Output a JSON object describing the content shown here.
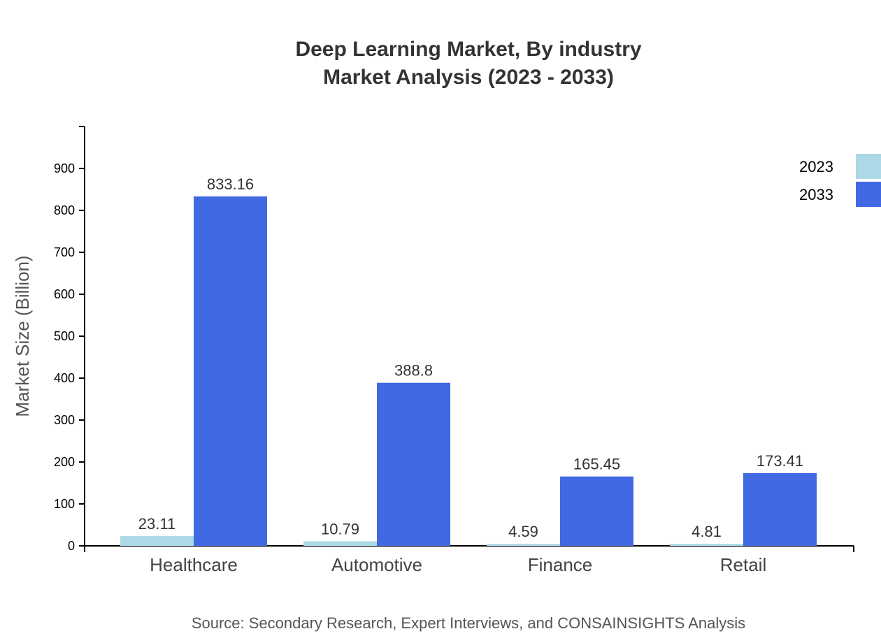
{
  "chart_data": {
    "type": "bar",
    "title": "Deep Learning Market, By industry",
    "subtitle": "Market Analysis (2023 - 2033)",
    "xlabel": "",
    "ylabel": "Market Size (Billion)",
    "ylim": [
      0,
      1000
    ],
    "yticks": [
      0,
      100,
      200,
      300,
      400,
      500,
      600,
      700,
      800,
      900
    ],
    "categories": [
      "Healthcare",
      "Automotive",
      "Finance",
      "Retail"
    ],
    "series": [
      {
        "name": "2023",
        "color": "#add8e6",
        "values": [
          23.11,
          10.79,
          4.59,
          4.81
        ]
      },
      {
        "name": "2033",
        "color": "#4169e1",
        "values": [
          833.16,
          388.8,
          165.45,
          173.41
        ]
      }
    ],
    "grid": false,
    "legend": "top-right",
    "source": "Source: Secondary Research, Expert Interviews, and CONSAINSIGHTS Analysis"
  }
}
